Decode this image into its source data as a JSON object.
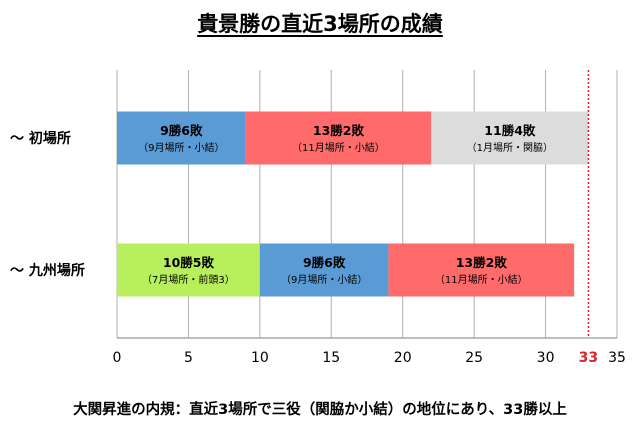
{
  "title": "貴景勝の直近3場所の成績",
  "note": "大関昇進の内規：直近3場所で三役（関脇か小結）の地位にあり、33勝以上",
  "chart_data": {
    "type": "bar",
    "orientation": "horizontal",
    "stacked": true,
    "title": "貴景勝の直近3場所の成績",
    "xlabel": "",
    "ylabel": "",
    "xlim": [
      0,
      35
    ],
    "xticks": [
      0,
      5,
      10,
      15,
      20,
      25,
      30,
      35
    ],
    "grid": true,
    "legend": "none",
    "categories": [
      "～ 初場所",
      "～ 九州場所"
    ],
    "bars": [
      {
        "category": "～ 初場所",
        "segments": [
          {
            "value": 9,
            "label": "9勝6敗",
            "sublabel": "（9月場所・小結）",
            "color": "#5b9bd5"
          },
          {
            "value": 13,
            "label": "13勝2敗",
            "sublabel": "（11月場所・小結）",
            "color": "#ff6b6b"
          },
          {
            "value": 11,
            "label": "11勝4敗",
            "sublabel": "（1月場所・関脇）",
            "color": "#dcdcdc"
          }
        ]
      },
      {
        "category": "～ 九州場所",
        "segments": [
          {
            "value": 10,
            "label": "10勝5敗",
            "sublabel": "（7月場所・前頭3）",
            "color": "#b7f05c"
          },
          {
            "value": 9,
            "label": "9勝6敗",
            "sublabel": "（9月場所・小結）",
            "color": "#5b9bd5"
          },
          {
            "value": 13,
            "label": "13勝2敗",
            "sublabel": "（11月場所・小結）",
            "color": "#ff6b6b"
          }
        ]
      }
    ],
    "reference_line": {
      "value": 33,
      "label": "33",
      "color": "#d9262c",
      "style": "dotted"
    }
  }
}
